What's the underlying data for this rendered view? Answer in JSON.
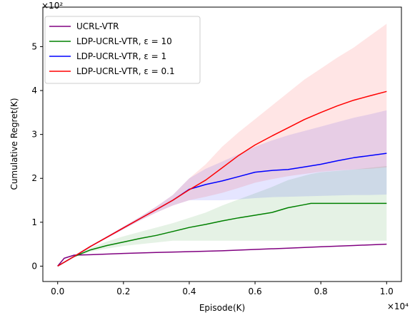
{
  "chart_data": {
    "type": "line",
    "title": "",
    "xlabel": "Episode(K)",
    "ylabel": "Cumulative Regret(K)",
    "x_multiplier_label": "×10⁴",
    "y_multiplier_label": "×10²",
    "xlim": [
      -0.045,
      1.045
    ],
    "ylim": [
      -0.35,
      5.9
    ],
    "x_ticks": [
      0.0,
      0.2,
      0.4,
      0.6,
      0.8,
      1.0
    ],
    "x_tick_labels": [
      "0.0",
      "0.2",
      "0.4",
      "0.6",
      "0.8",
      "1.0"
    ],
    "y_ticks": [
      0,
      1,
      2,
      3,
      4,
      5
    ],
    "y_tick_labels": [
      "0",
      "1",
      "2",
      "3",
      "4",
      "5"
    ],
    "grid": false,
    "legend_position": "top-left",
    "series": [
      {
        "name": "UCRL-VTR",
        "color": "#800080",
        "x": [
          0.0,
          0.02,
          0.05,
          0.1,
          0.2,
          0.3,
          0.4,
          0.5,
          0.6,
          0.7,
          0.8,
          0.9,
          1.0
        ],
        "y": [
          0.0,
          0.18,
          0.25,
          0.26,
          0.29,
          0.31,
          0.33,
          0.35,
          0.38,
          0.41,
          0.44,
          0.47,
          0.5
        ],
        "lower": [],
        "upper": []
      },
      {
        "name": "LDP-UCRL-VTR, ε = 10",
        "color": "#008000",
        "x": [
          0.0,
          0.05,
          0.1,
          0.15,
          0.2,
          0.25,
          0.3,
          0.35,
          0.4,
          0.45,
          0.5,
          0.55,
          0.6,
          0.65,
          0.7,
          0.75,
          0.77,
          0.8,
          0.9,
          1.0
        ],
        "y": [
          0.0,
          0.22,
          0.37,
          0.47,
          0.55,
          0.63,
          0.7,
          0.79,
          0.88,
          0.95,
          1.03,
          1.1,
          1.16,
          1.22,
          1.33,
          1.4,
          1.43,
          1.43,
          1.43,
          1.43
        ],
        "lower": [
          0.0,
          0.2,
          0.33,
          0.4,
          0.46,
          0.5,
          0.54,
          0.58,
          0.58,
          0.58,
          0.58,
          0.58,
          0.58,
          0.58,
          0.58,
          0.58,
          0.58,
          0.58,
          0.58,
          0.58
        ],
        "upper": [
          0.0,
          0.25,
          0.42,
          0.56,
          0.68,
          0.78,
          0.88,
          0.98,
          1.1,
          1.22,
          1.38,
          1.52,
          1.66,
          1.8,
          1.96,
          2.06,
          2.1,
          2.14,
          2.2,
          2.28
        ]
      },
      {
        "name": "LDP-UCRL-VTR, ε = 1",
        "color": "#0000ff",
        "x": [
          0.0,
          0.05,
          0.1,
          0.15,
          0.2,
          0.25,
          0.3,
          0.35,
          0.4,
          0.45,
          0.5,
          0.55,
          0.6,
          0.65,
          0.7,
          0.75,
          0.8,
          0.85,
          0.9,
          0.95,
          1.0
        ],
        "y": [
          0.0,
          0.22,
          0.45,
          0.66,
          0.87,
          1.08,
          1.29,
          1.5,
          1.75,
          1.86,
          1.94,
          2.04,
          2.14,
          2.18,
          2.2,
          2.26,
          2.32,
          2.4,
          2.47,
          2.52,
          2.57
        ],
        "lower": [
          0.0,
          0.22,
          0.44,
          0.64,
          0.84,
          1.04,
          1.22,
          1.38,
          1.5,
          1.5,
          1.5,
          1.52,
          1.55,
          1.57,
          1.58,
          1.59,
          1.6,
          1.61,
          1.62,
          1.62,
          1.63
        ],
        "upper": [
          0.0,
          0.22,
          0.46,
          0.68,
          0.9,
          1.12,
          1.36,
          1.62,
          2.0,
          2.22,
          2.38,
          2.55,
          2.72,
          2.86,
          2.98,
          3.08,
          3.18,
          3.28,
          3.38,
          3.46,
          3.55
        ]
      },
      {
        "name": "LDP-UCRL-VTR, ε = 0.1",
        "color": "#ff0000",
        "x": [
          0.0,
          0.05,
          0.1,
          0.15,
          0.2,
          0.25,
          0.3,
          0.35,
          0.4,
          0.45,
          0.5,
          0.55,
          0.6,
          0.65,
          0.7,
          0.75,
          0.8,
          0.85,
          0.9,
          0.95,
          1.0
        ],
        "y": [
          0.0,
          0.22,
          0.45,
          0.66,
          0.87,
          1.08,
          1.29,
          1.5,
          1.74,
          1.96,
          2.24,
          2.52,
          2.76,
          2.96,
          3.15,
          3.34,
          3.5,
          3.65,
          3.78,
          3.88,
          3.98
        ],
        "lower": [
          0.0,
          0.22,
          0.44,
          0.64,
          0.84,
          1.04,
          1.22,
          1.38,
          1.5,
          1.58,
          1.67,
          1.78,
          1.9,
          1.98,
          2.05,
          2.1,
          2.15,
          2.18,
          2.2,
          2.22,
          2.25
        ],
        "upper": [
          0.0,
          0.22,
          0.46,
          0.68,
          0.9,
          1.12,
          1.36,
          1.62,
          2.0,
          2.32,
          2.72,
          3.05,
          3.35,
          3.65,
          3.95,
          4.25,
          4.5,
          4.75,
          4.98,
          5.25,
          5.52
        ]
      }
    ]
  }
}
